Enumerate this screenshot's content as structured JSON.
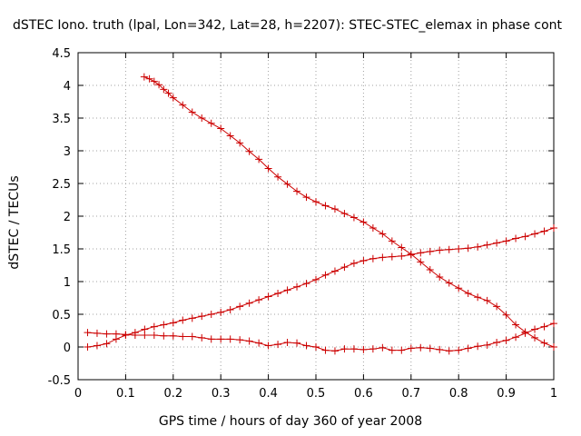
{
  "chart_data": {
    "type": "line",
    "title": "dSTEC Iono. truth (lpal, Lon=342, Lat=28, h=2207): STEC-STEC_elemax in phase cont",
    "xlabel": "GPS time / hours of day 360 of year 2008",
    "ylabel": "dSTEC  / TECUs",
    "xlim": [
      0,
      1
    ],
    "ylim": [
      -0.5,
      4.5
    ],
    "xticks": [
      "0",
      "0.1",
      "0.2",
      "0.3",
      "0.4",
      "0.5",
      "0.6",
      "0.7",
      "0.8",
      "0.9",
      "1"
    ],
    "yticks": [
      "-0.5",
      "0",
      "0.5",
      "1",
      "1.5",
      "2",
      "2.5",
      "3",
      "3.5",
      "4",
      "4.5"
    ],
    "grid": true,
    "marker": "+",
    "color": "#cc0000",
    "series": [
      {
        "x": [
          0.139,
          0.15,
          0.16,
          0.17,
          0.18,
          0.19,
          0.2,
          0.22,
          0.24,
          0.26,
          0.28,
          0.3,
          0.32,
          0.34,
          0.36,
          0.38,
          0.4,
          0.42,
          0.44,
          0.46,
          0.48,
          0.5,
          0.52,
          0.54,
          0.56,
          0.58,
          0.6,
          0.62,
          0.64,
          0.66,
          0.68,
          0.7,
          0.72,
          0.74,
          0.76,
          0.78,
          0.8,
          0.82,
          0.84,
          0.86,
          0.88,
          0.9,
          0.92,
          0.94,
          0.96,
          0.98,
          1.0
        ],
        "y": [
          4.13,
          4.1,
          4.06,
          4.01,
          3.94,
          3.88,
          3.81,
          3.7,
          3.59,
          3.5,
          3.42,
          3.34,
          3.23,
          3.12,
          2.99,
          2.87,
          2.73,
          2.6,
          2.49,
          2.38,
          2.29,
          2.22,
          2.16,
          2.11,
          2.04,
          1.98,
          1.91,
          1.82,
          1.73,
          1.62,
          1.52,
          1.42,
          1.3,
          1.18,
          1.07,
          0.98,
          0.9,
          0.82,
          0.76,
          0.71,
          0.62,
          0.49,
          0.34,
          0.23,
          0.14,
          0.06,
          0.0
        ]
      },
      {
        "x": [
          0.02,
          0.04,
          0.06,
          0.08,
          0.1,
          0.12,
          0.14,
          0.16,
          0.18,
          0.2,
          0.22,
          0.24,
          0.26,
          0.28,
          0.3,
          0.32,
          0.34,
          0.36,
          0.38,
          0.4,
          0.42,
          0.44,
          0.46,
          0.48,
          0.5,
          0.52,
          0.54,
          0.56,
          0.58,
          0.6,
          0.62,
          0.64,
          0.66,
          0.68,
          0.7,
          0.72,
          0.74,
          0.76,
          0.78,
          0.8,
          0.82,
          0.84,
          0.86,
          0.88,
          0.9,
          0.92,
          0.94,
          0.96,
          0.98,
          1.0
        ],
        "y": [
          0.0,
          0.02,
          0.05,
          0.12,
          0.18,
          0.22,
          0.27,
          0.31,
          0.34,
          0.37,
          0.41,
          0.44,
          0.47,
          0.5,
          0.53,
          0.57,
          0.62,
          0.67,
          0.72,
          0.77,
          0.82,
          0.87,
          0.92,
          0.97,
          1.03,
          1.1,
          1.16,
          1.22,
          1.28,
          1.32,
          1.35,
          1.37,
          1.38,
          1.39,
          1.41,
          1.44,
          1.46,
          1.48,
          1.49,
          1.5,
          1.51,
          1.53,
          1.56,
          1.59,
          1.62,
          1.66,
          1.69,
          1.73,
          1.77,
          1.82
        ]
      },
      {
        "x": [
          0.02,
          0.04,
          0.06,
          0.08,
          0.1,
          0.12,
          0.14,
          0.16,
          0.18,
          0.2,
          0.22,
          0.24,
          0.26,
          0.28,
          0.3,
          0.32,
          0.34,
          0.36,
          0.38,
          0.4,
          0.42,
          0.44,
          0.46,
          0.48,
          0.5,
          0.52,
          0.54,
          0.56,
          0.58,
          0.6,
          0.62,
          0.64,
          0.66,
          0.68,
          0.7,
          0.72,
          0.74,
          0.76,
          0.78,
          0.8,
          0.82,
          0.84,
          0.86,
          0.88,
          0.9,
          0.92,
          0.94,
          0.96,
          0.98,
          1.0
        ],
        "y": [
          0.22,
          0.21,
          0.2,
          0.2,
          0.19,
          0.18,
          0.18,
          0.18,
          0.17,
          0.17,
          0.16,
          0.16,
          0.14,
          0.12,
          0.12,
          0.12,
          0.11,
          0.09,
          0.06,
          0.02,
          0.04,
          0.07,
          0.06,
          0.02,
          0.0,
          -0.05,
          -0.06,
          -0.03,
          -0.03,
          -0.04,
          -0.03,
          -0.01,
          -0.05,
          -0.05,
          -0.02,
          -0.01,
          -0.02,
          -0.04,
          -0.06,
          -0.05,
          -0.02,
          0.01,
          0.03,
          0.07,
          0.1,
          0.15,
          0.21,
          0.27,
          0.31,
          0.36
        ]
      }
    ]
  }
}
